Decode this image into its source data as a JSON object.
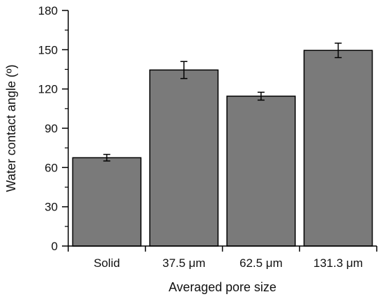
{
  "chart_data": {
    "type": "bar",
    "title": "",
    "xlabel": "Averaged pore size",
    "ylabel": "Water contact angle (º)",
    "categories": [
      "Solid",
      "37.5 μm",
      "62.5 μm",
      "131.3 μm"
    ],
    "values": [
      67.5,
      134.5,
      114.5,
      149.5
    ],
    "errors": [
      2.5,
      6.5,
      3.0,
      5.5
    ],
    "ylim": [
      0,
      180
    ],
    "yticks": [
      0,
      30,
      60,
      90,
      120,
      150,
      180
    ],
    "ytick_labels": [
      "0",
      "30",
      "60",
      "90",
      "120",
      "150",
      "180"
    ],
    "grid": false,
    "legend": "none",
    "bar_color": "#7a7a7a",
    "bar_edge_color": "#000000"
  }
}
